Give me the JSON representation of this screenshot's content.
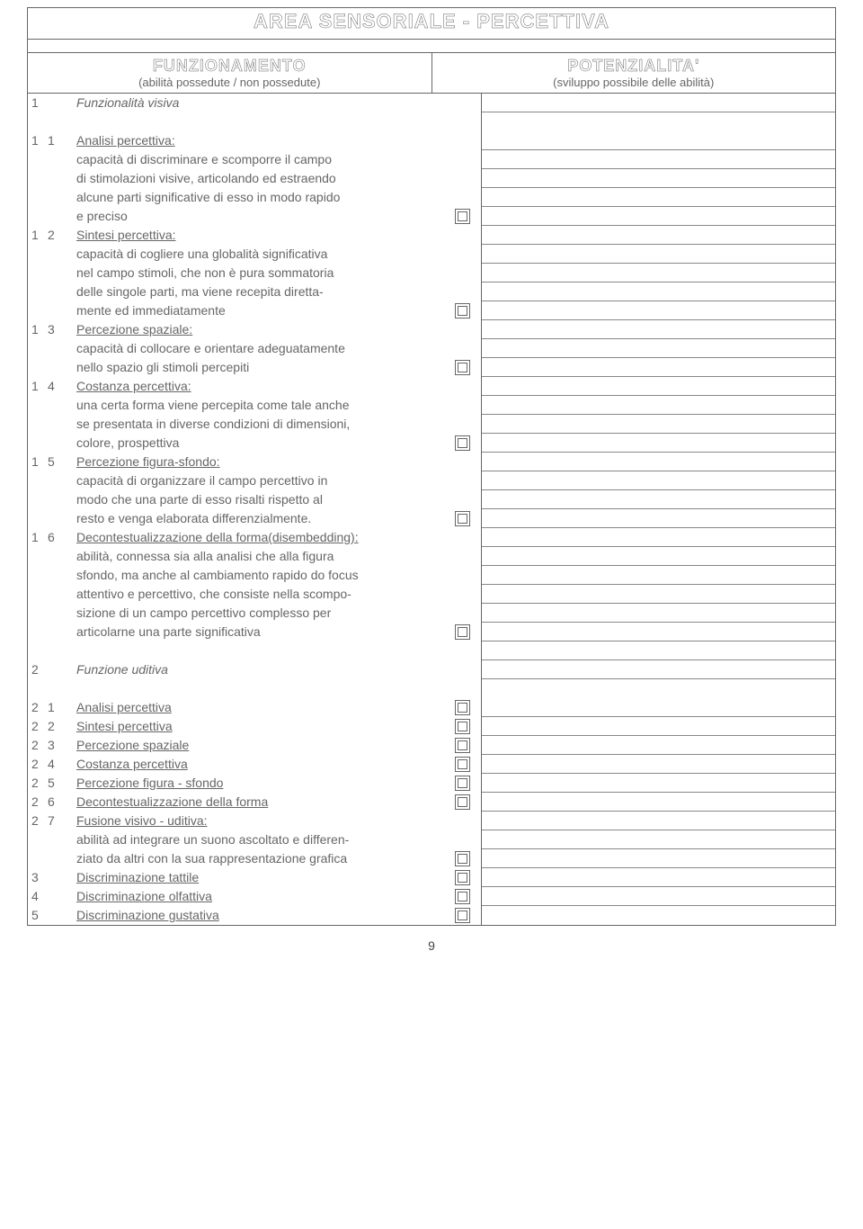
{
  "page": {
    "title": "AREA SENSORIALE - PERCETTIVA",
    "left_header": "FUNZIONAMENTO",
    "left_sub": "(abilità possedute / non possedute)",
    "right_header": "POTENZIALITA'",
    "right_sub": "(sviluppo possibile delle abilità)",
    "page_number": "9"
  },
  "sections": {
    "s1": {
      "n": "1",
      "title": "Funzionalità visiva"
    },
    "s2": {
      "n": "2",
      "title": "Funzione uditiva"
    }
  },
  "items": {
    "i11": {
      "a": "1",
      "b": "1",
      "title": "Analisi percettiva:",
      "lines": [
        "capacità di discriminare e scomporre il campo",
        "di stimolazioni visive, articolando ed estraendo",
        "alcune parti significative di esso in modo rapido",
        "e preciso"
      ]
    },
    "i12": {
      "a": "1",
      "b": "2",
      "title": "Sintesi percettiva:",
      "lines": [
        "capacità di cogliere una globalità significativa",
        "nel campo stimoli, che non è pura sommatoria",
        "delle singole parti, ma viene recepita diretta-",
        "mente ed immediatamente"
      ]
    },
    "i13": {
      "a": "1",
      "b": "3",
      "title": "Percezione spaziale:",
      "lines": [
        "capacità di collocare e orientare adeguatamente",
        "nello spazio gli stimoli percepiti"
      ]
    },
    "i14": {
      "a": "1",
      "b": "4",
      "title": "Costanza percettiva:",
      "lines": [
        "una certa forma viene percepita come tale anche",
        "se presentata in diverse condizioni di dimensioni,",
        "colore, prospettiva"
      ]
    },
    "i15": {
      "a": "1",
      "b": "5",
      "title": "Percezione figura-sfondo:",
      "lines": [
        "capacità di organizzare il campo percettivo in",
        "modo che una parte di esso risalti rispetto al",
        "resto e venga elaborata differenzialmente."
      ]
    },
    "i16": {
      "a": "1",
      "b": "6",
      "title": "Decontestualizzazione della forma(disembedding):",
      "lines": [
        "abilità, connessa sia alla analisi che alla figura",
        "sfondo, ma anche al cambiamento rapido do focus",
        "attentivo e percettivo, che consiste nella scompo-",
        "sizione di un campo percettivo complesso per",
        "articolarne una parte significativa"
      ]
    },
    "i21": {
      "a": "2",
      "b": "1",
      "title": "Analisi percettiva"
    },
    "i22": {
      "a": "2",
      "b": "2",
      "title": "Sintesi percettiva"
    },
    "i23": {
      "a": "2",
      "b": "3",
      "title": "Percezione spaziale"
    },
    "i24": {
      "a": "2",
      "b": "4",
      "title": "Costanza percettiva"
    },
    "i25": {
      "a": "2",
      "b": "5",
      "title": "Percezione figura - sfondo"
    },
    "i26": {
      "a": "2",
      "b": "6",
      "title": "Decontestualizzazione della forma"
    },
    "i27": {
      "a": "2",
      "b": "7",
      "title": "Fusione visivo - uditiva:",
      "lines": [
        "abilità ad integrare un suono ascoltato e differen-",
        "ziato da altri con la sua rappresentazione grafica"
      ]
    },
    "i3": {
      "a": "3",
      "title": "Discriminazione tattile"
    },
    "i4": {
      "a": "4",
      "title": "Discriminazione olfattiva"
    },
    "i5": {
      "a": "5",
      "title": "Discriminazione gustativa"
    }
  },
  "colors": {
    "text": "#666666",
    "border": "#666666",
    "line": "#888888",
    "background": "#ffffff"
  }
}
